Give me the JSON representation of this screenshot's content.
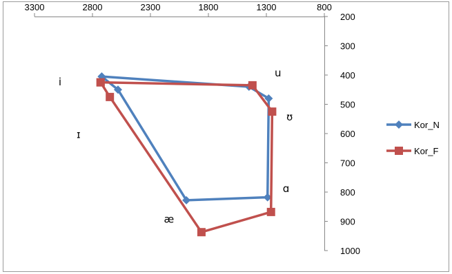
{
  "chart_data": {
    "type": "scatter",
    "title": "",
    "xlabel": "",
    "ylabel": "",
    "x_reversed": true,
    "y_reversed": true,
    "xlim": [
      800,
      3300
    ],
    "ylim": [
      200,
      1000
    ],
    "x_ticks": [
      3300,
      2800,
      2300,
      1800,
      1300,
      800
    ],
    "y_ticks": [
      200,
      300,
      400,
      500,
      600,
      700,
      800,
      900,
      1000
    ],
    "x_axis_position": "top",
    "y_axis_position": "right",
    "grid": false,
    "legend_position": "right",
    "series": [
      {
        "name": "Kor_N",
        "color": "#4f81bd",
        "marker": "diamond",
        "points": [
          {
            "x": 2720,
            "y": 405
          },
          {
            "x": 2580,
            "y": 450
          },
          {
            "x": 1990,
            "y": 828
          },
          {
            "x": 1290,
            "y": 818
          },
          {
            "x": 1280,
            "y": 480
          },
          {
            "x": 1450,
            "y": 440
          },
          {
            "x": 2720,
            "y": 405
          }
        ]
      },
      {
        "name": "Kor_F",
        "color": "#c0504d",
        "marker": "square",
        "points": [
          {
            "x": 2730,
            "y": 425
          },
          {
            "x": 2650,
            "y": 475
          },
          {
            "x": 1860,
            "y": 937
          },
          {
            "x": 1260,
            "y": 868
          },
          {
            "x": 1250,
            "y": 525
          },
          {
            "x": 1420,
            "y": 435
          },
          {
            "x": 2730,
            "y": 425
          }
        ]
      }
    ],
    "annotations": [
      {
        "text": "i",
        "x": 3080,
        "y": 435
      },
      {
        "text": "ɪ",
        "x": 2920,
        "y": 615
      },
      {
        "text": "æ",
        "x": 2140,
        "y": 905
      },
      {
        "text": "ɑ",
        "x": 1130,
        "y": 800
      },
      {
        "text": "u",
        "x": 1200,
        "y": 405
      },
      {
        "text": "ʊ",
        "x": 1100,
        "y": 555
      }
    ]
  }
}
